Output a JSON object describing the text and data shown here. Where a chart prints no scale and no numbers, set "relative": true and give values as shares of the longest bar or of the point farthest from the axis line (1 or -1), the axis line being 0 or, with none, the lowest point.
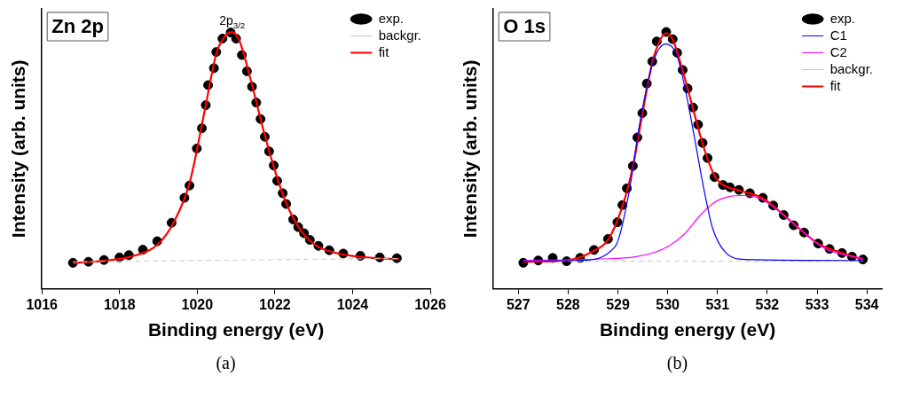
{
  "chart_data": [
    {
      "type": "line",
      "title": "Zn 2p",
      "xlabel": "Binding energy (eV)",
      "ylabel": "Intensity (arb. units)",
      "relative": true,
      "xlim": [
        1016,
        1026
      ],
      "xticks": [
        1016,
        1018,
        1020,
        1022,
        1024,
        1026
      ],
      "legend": "top right",
      "grid": false,
      "annotations": [
        {
          "text": "2p$_{3/2}$",
          "x": 1020.9,
          "y": 1
        },
        "(a)"
      ],
      "series": [
        {
          "name": "exp.",
          "type": "scatter",
          "marker": "circle",
          "color": "#000000",
          "x": [
            1016.8,
            1017.2,
            1017.6,
            1018.0,
            1018.24,
            1018.6,
            1018.97,
            1019.34,
            1019.67,
            1019.8,
            1019.99,
            1020.12,
            1020.22,
            1020.28,
            1020.43,
            1020.49,
            1020.65,
            1020.86,
            1021.0,
            1021.15,
            1021.28,
            1021.41,
            1021.52,
            1021.63,
            1021.74,
            1021.85,
            1021.97,
            1022.06,
            1022.2,
            1022.29,
            1022.47,
            1022.6,
            1022.75,
            1022.9,
            1023.12,
            1023.4,
            1023.76,
            1024.2,
            1024.7,
            1025.14
          ],
          "values": [
            0.101,
            0.105,
            0.112,
            0.122,
            0.131,
            0.152,
            0.185,
            0.257,
            0.354,
            0.402,
            0.546,
            0.625,
            0.715,
            0.793,
            0.859,
            0.922,
            0.974,
            0.998,
            0.974,
            0.91,
            0.847,
            0.787,
            0.725,
            0.661,
            0.592,
            0.535,
            0.48,
            0.42,
            0.372,
            0.33,
            0.27,
            0.24,
            0.216,
            0.19,
            0.167,
            0.15,
            0.137,
            0.128,
            0.122,
            0.119
          ]
        },
        {
          "name": "backgr.",
          "color": "#c8c8c8",
          "line_style": "dashed",
          "x": [
            1016.8,
            1025.2
          ],
          "values": [
            0.105,
            0.118
          ]
        },
        {
          "name": "fit",
          "color": "#ff0000",
          "x": [
            1016.8,
            1017.5,
            1018.3,
            1019.0,
            1019.4,
            1019.8,
            1020.2,
            1020.5,
            1020.75,
            1020.9,
            1021.1,
            1021.4,
            1021.7,
            1022.0,
            1022.3,
            1022.7,
            1023.1,
            1023.7,
            1024.5,
            1025.2
          ],
          "values": [
            0.1,
            0.108,
            0.125,
            0.175,
            0.26,
            0.41,
            0.7,
            0.92,
            0.99,
            1.0,
            0.96,
            0.8,
            0.62,
            0.46,
            0.33,
            0.22,
            0.165,
            0.135,
            0.12,
            0.115
          ]
        }
      ]
    },
    {
      "type": "line",
      "title": "O 1s",
      "xlabel": "Binding energy (eV)",
      "ylabel": "Intensity (arb. units)",
      "relative": true,
      "xlim": [
        526.5,
        534.3
      ],
      "xticks": [
        527,
        528,
        529,
        530,
        531,
        532,
        533,
        534
      ],
      "legend": "top right",
      "grid": false,
      "annotations": [
        "(b)"
      ],
      "series": [
        {
          "name": "exp.",
          "type": "scatter",
          "marker": "circle",
          "color": "#000000",
          "x": [
            527.1,
            527.4,
            527.69,
            527.97,
            528.24,
            528.52,
            528.8,
            528.99,
            529.09,
            529.18,
            529.3,
            529.39,
            529.49,
            529.58,
            529.69,
            529.78,
            529.97,
            530.1,
            530.19,
            530.3,
            530.4,
            530.51,
            530.61,
            530.7,
            530.8,
            530.94,
            531.11,
            531.25,
            531.43,
            531.65,
            531.91,
            532.12,
            532.33,
            532.53,
            532.74,
            533.02,
            533.25,
            533.5,
            533.7,
            533.92
          ],
          "values": [
            0.101,
            0.11,
            0.12,
            0.107,
            0.12,
            0.151,
            0.194,
            0.259,
            0.326,
            0.391,
            0.478,
            0.589,
            0.684,
            0.799,
            0.885,
            0.963,
            1.0,
            0.972,
            0.919,
            0.852,
            0.78,
            0.706,
            0.639,
            0.568,
            0.509,
            0.435,
            0.404,
            0.395,
            0.385,
            0.372,
            0.354,
            0.324,
            0.287,
            0.247,
            0.219,
            0.176,
            0.155,
            0.139,
            0.125,
            0.114
          ]
        },
        {
          "name": "C1",
          "color": "#0000ff",
          "x": [
            527.1,
            528.24,
            528.94,
            529.21,
            529.45,
            529.7,
            529.96,
            530.17,
            530.35,
            530.52,
            530.73,
            530.9,
            531.15,
            531.56,
            533.92
          ],
          "values": [
            0.107,
            0.11,
            0.163,
            0.361,
            0.657,
            0.879,
            0.953,
            0.916,
            0.78,
            0.607,
            0.385,
            0.237,
            0.144,
            0.114,
            0.11
          ]
        },
        {
          "name": "C2",
          "color": "#ff00ff",
          "x": [
            527.1,
            528.66,
            529.35,
            529.9,
            530.32,
            530.66,
            530.94,
            531.22,
            531.53,
            531.91,
            532.33,
            532.74,
            533.15,
            533.92
          ],
          "values": [
            0.11,
            0.116,
            0.124,
            0.154,
            0.21,
            0.287,
            0.336,
            0.358,
            0.363,
            0.346,
            0.287,
            0.218,
            0.157,
            0.117
          ]
        },
        {
          "name": "backgr.",
          "color": "#c8c8c8",
          "line_style": "dashed",
          "x": [
            527.1,
            533.92
          ],
          "values": [
            0.107,
            0.107
          ]
        },
        {
          "name": "fit",
          "color": "#ff0000",
          "x": [
            527.1,
            527.97,
            528.52,
            528.8,
            529.09,
            529.3,
            529.49,
            529.69,
            529.85,
            529.97,
            530.1,
            530.3,
            530.51,
            530.7,
            530.94,
            531.11,
            531.43,
            531.91,
            532.33,
            532.74,
            533.02,
            533.5,
            533.92
          ],
          "values": [
            0.105,
            0.11,
            0.148,
            0.19,
            0.32,
            0.475,
            0.68,
            0.88,
            0.97,
            0.995,
            0.97,
            0.85,
            0.7,
            0.565,
            0.44,
            0.405,
            0.383,
            0.352,
            0.287,
            0.218,
            0.176,
            0.139,
            0.114
          ]
        }
      ]
    }
  ]
}
